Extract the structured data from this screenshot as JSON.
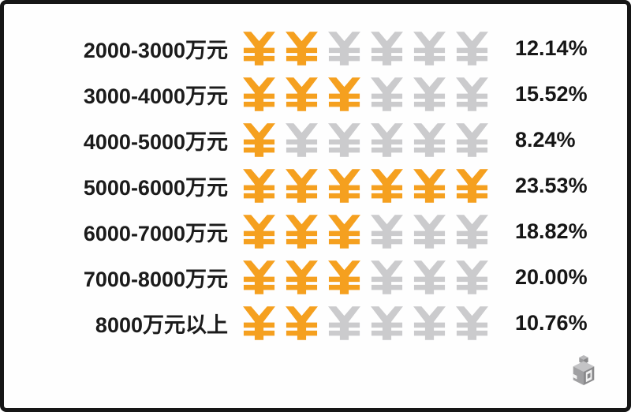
{
  "chart_data": {
    "type": "bar",
    "variant": "pictogram",
    "title": "",
    "xlabel": "",
    "ylabel": "",
    "legend": "none",
    "grid": false,
    "icon_glyph": "yen-sign",
    "icons_per_row": 6,
    "categories": [
      "2000-3000万元",
      "3000-4000万元",
      "4000-5000万元",
      "5000-6000万元",
      "6000-7000万元",
      "7000-8000万元",
      "8000万元以上"
    ],
    "values": [
      12.14,
      15.52,
      8.24,
      23.53,
      18.82,
      20.0,
      10.76
    ],
    "value_labels": [
      "12.14%",
      "15.52%",
      "8.24%",
      "23.53%",
      "18.82%",
      "20.00%",
      "10.76%"
    ],
    "icons_filled": [
      2,
      3,
      1,
      6,
      3,
      3,
      2
    ],
    "colors": {
      "icon_filled": "#f5a01f",
      "icon_empty": "#cbcbcd",
      "text": "#1b1b1b",
      "frame": "#161616",
      "background": "#fefefe"
    }
  },
  "rows": [
    {
      "label": "2000-3000万元",
      "filled": 2,
      "total": 6,
      "percent": "12.14%"
    },
    {
      "label": "3000-4000万元",
      "filled": 3,
      "total": 6,
      "percent": "15.52%"
    },
    {
      "label": "4000-5000万元",
      "filled": 1,
      "total": 6,
      "percent": "8.24%"
    },
    {
      "label": "5000-6000万元",
      "filled": 6,
      "total": 6,
      "percent": "23.53%"
    },
    {
      "label": "6000-7000万元",
      "filled": 3,
      "total": 6,
      "percent": "18.82%"
    },
    {
      "label": "7000-8000万元",
      "filled": 3,
      "total": 6,
      "percent": "20.00%"
    },
    {
      "label": "8000万元以上",
      "filled": 2,
      "total": 6,
      "percent": "10.76%"
    }
  ],
  "watermark": {
    "name": "gray-3d-cube-logo"
  }
}
